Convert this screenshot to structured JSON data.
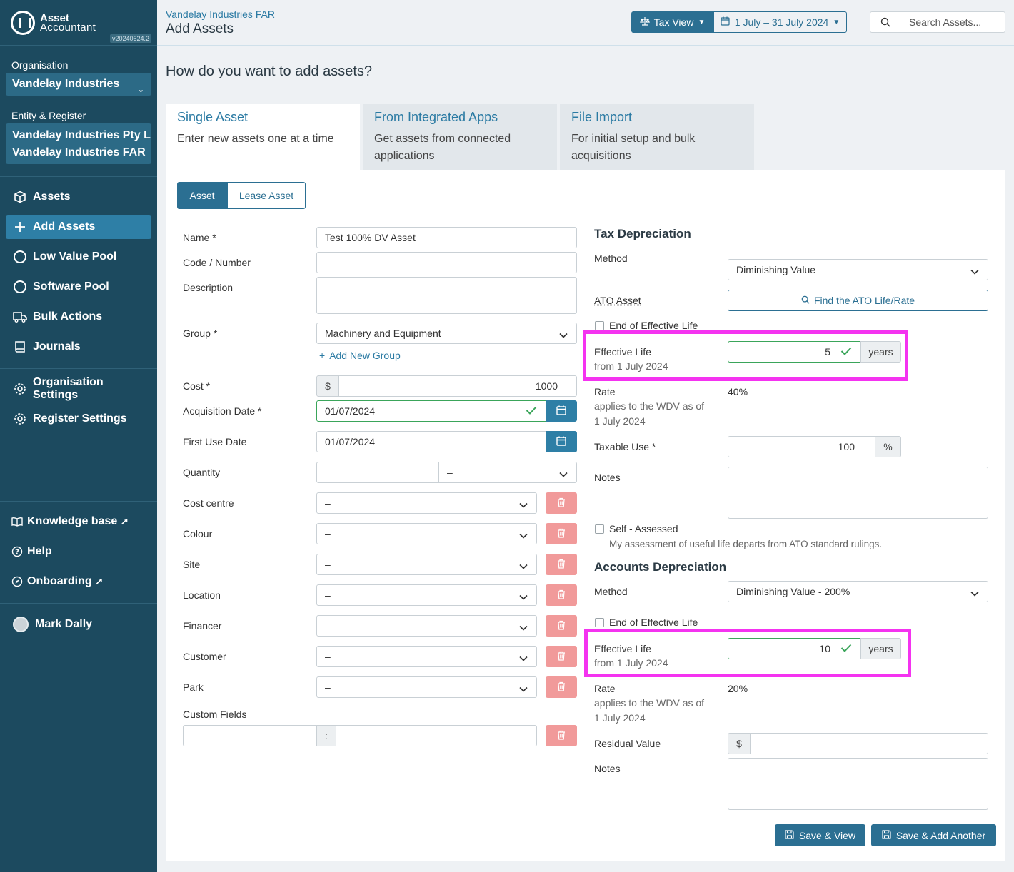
{
  "brand": {
    "line1": "Asset",
    "line2": "Accountant",
    "version": "v20240624.2"
  },
  "sidebar": {
    "org_label": "Organisation",
    "org_value": "Vandelay Industries",
    "entity_label": "Entity & Register",
    "entity_value": "Vandelay Industries Pty Ltd",
    "register_value": "Vandelay Industries FAR",
    "nav": [
      {
        "label": "Assets",
        "icon": "cube-icon"
      },
      {
        "label": "Add Assets",
        "icon": "plus-icon"
      },
      {
        "label": "Low Value Pool",
        "icon": "circle-icon"
      },
      {
        "label": "Software Pool",
        "icon": "circle-icon"
      },
      {
        "label": "Bulk Actions",
        "icon": "truck-icon"
      },
      {
        "label": "Journals",
        "icon": "book-icon"
      },
      {
        "label": "Organisation Settings",
        "icon": "gear-icon"
      },
      {
        "label": "Register Settings",
        "icon": "gear-icon"
      },
      {
        "label": "Knowledge base",
        "icon": "book-open-icon"
      },
      {
        "label": "Help",
        "icon": "question-icon"
      },
      {
        "label": "Onboarding",
        "icon": "compass-icon"
      }
    ],
    "user": "Mark Dally"
  },
  "header": {
    "breadcrumb": "Vandelay Industries FAR",
    "title": "Add Assets",
    "view_button": "Tax View",
    "date_range": "1 July – 31 July 2024",
    "search_placeholder": "Search Assets..."
  },
  "question": "How do you want to add assets?",
  "tabs": [
    {
      "title": "Single Asset",
      "desc": "Enter new assets one at a time"
    },
    {
      "title": "From Integrated Apps",
      "desc": "Get assets from connected applications"
    },
    {
      "title": "File Import",
      "desc": "For initial setup and bulk acquisitions"
    }
  ],
  "segments": {
    "asset": "Asset",
    "lease": "Lease Asset"
  },
  "form": {
    "name_label": "Name *",
    "name_value": "Test 100% DV Asset",
    "code_label": "Code / Number",
    "description_label": "Description",
    "group_label": "Group *",
    "group_value": "Machinery and Equipment",
    "add_group": "Add New Group",
    "cost_label": "Cost *",
    "currency": "$",
    "cost_value": "1000",
    "acq_label": "Acquisition Date *",
    "acq_value": "01/07/2024",
    "first_use_label": "First Use Date",
    "first_use_value": "01/07/2024",
    "quantity_label": "Quantity",
    "dash": "–",
    "cost_centre_label": "Cost centre",
    "colour_label": "Colour",
    "site_label": "Site",
    "location_label": "Location",
    "financer_label": "Financer",
    "customer_label": "Customer",
    "park_label": "Park",
    "custom_fields_label": "Custom Fields",
    "colon": ":"
  },
  "tax": {
    "title": "Tax Depreciation",
    "method_label": "Method",
    "method_value": "Diminishing Value",
    "ato_label": "ATO Asset",
    "ato_button": "Find the ATO Life/Rate",
    "eol_label": "End of Effective Life",
    "life_label": "Effective Life",
    "life_sub": "from 1 July 2024",
    "life_value": "5",
    "years": "years",
    "rate_label": "Rate",
    "rate_sub1": "applies to the WDV as of",
    "rate_sub2": "1 July 2024",
    "rate_value": "40%",
    "taxable_label": "Taxable Use *",
    "taxable_value": "100",
    "pct": "%",
    "notes_label": "Notes",
    "self_label": "Self - Assessed",
    "self_desc": "My assessment of useful life departs from ATO standard rulings."
  },
  "accounts": {
    "title": "Accounts Depreciation",
    "method_label": "Method",
    "method_value": "Diminishing Value - 200%",
    "eol_label": "End of Effective Life",
    "life_label": "Effective Life",
    "life_sub": "from 1 July 2024",
    "life_value": "10",
    "years": "years",
    "rate_label": "Rate",
    "rate_sub1": "applies to the WDV as of",
    "rate_sub2": "1 July 2024",
    "rate_value": "20%",
    "residual_label": "Residual Value",
    "currency": "$",
    "notes_label": "Notes"
  },
  "actions": {
    "save_view": "Save & View",
    "save_add": "Save & Add Another"
  },
  "colors": {
    "sidebar": "#1c4a5f",
    "accent": "#2b6f92",
    "highlight": "#f433f0",
    "success": "#3aa55a",
    "danger": "#f19a9a"
  }
}
